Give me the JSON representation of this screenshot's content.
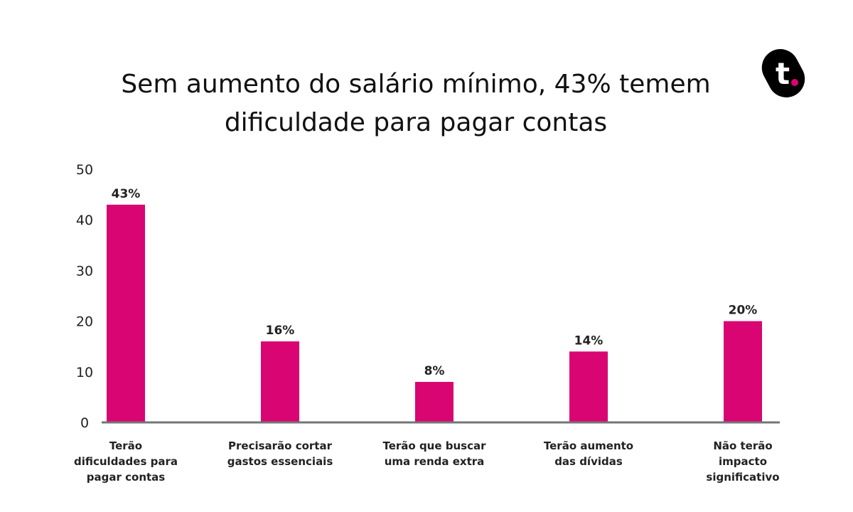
{
  "title_line1": "Sem aumento do salário mínimo, 43% temem",
  "title_line2": "dificuldade para pagar contas",
  "logo": {
    "letter": "t",
    "icon": "t-dot-logo-icon",
    "dot_color": "#e0006f",
    "bg_color": "#000000"
  },
  "colors": {
    "bar": "#d90572",
    "axis": "#757575"
  },
  "chart_data": {
    "type": "bar",
    "title": "Sem aumento do salário mínimo, 43% temem dificuldade para pagar contas",
    "categories": [
      [
        "Terão",
        "dificuldades para",
        "pagar contas"
      ],
      [
        "Precisarão cortar",
        "gastos essenciais"
      ],
      [
        "Terão que buscar",
        "uma renda extra"
      ],
      [
        "Terão aumento",
        "das dívidas"
      ],
      [
        "Não terão",
        "impacto",
        "significativo"
      ]
    ],
    "values": [
      43,
      16,
      8,
      14,
      20
    ],
    "value_labels": [
      "43%",
      "16%",
      "8%",
      "14%",
      "20%"
    ],
    "y_ticks": [
      "0",
      "10",
      "20",
      "30",
      "40",
      "50"
    ],
    "ylim": [
      0,
      50
    ],
    "grid": false,
    "legend": "none"
  }
}
